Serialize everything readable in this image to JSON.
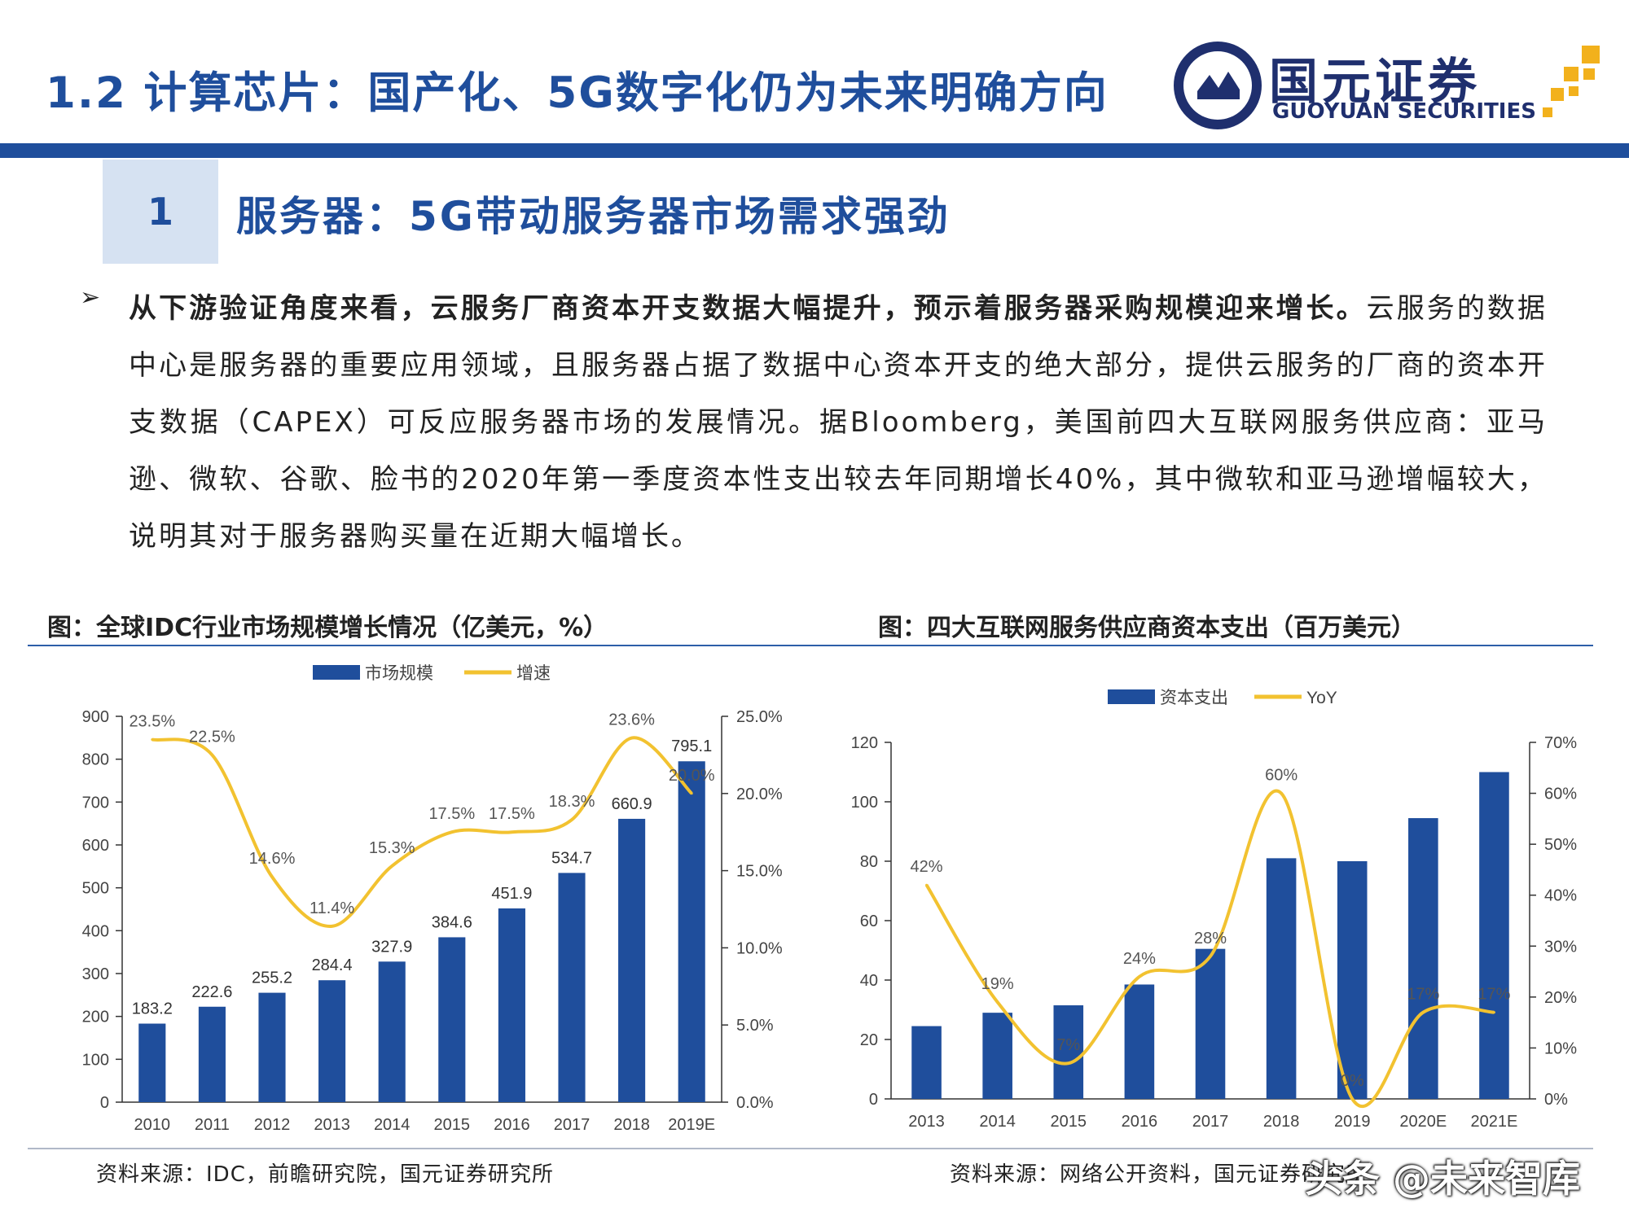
{
  "header": {
    "title": "1.2 计算芯片：国产化、5G数字化仍为未来明确方向",
    "logo_cn": "国元证券",
    "logo_en": "GUOYUAN SECURITIES",
    "colors": {
      "brand_blue": "#1f4e9c",
      "logo_navy": "#1f2f6e",
      "logo_gold": "#f2b11c"
    }
  },
  "section": {
    "number": "1",
    "title": "服务器：5G带动服务器市场需求强劲"
  },
  "body": {
    "bullet": "➢",
    "lead": "从下游验证角度来看，云服务厂商资本开支数据大幅提升，预示着服务器采购规模迎来增长。",
    "rest": "云服务的数据中心是服务器的重要应用领域，且服务器占据了数据中心资本开支的绝大部分，提供云服务的厂商的资本开支数据（CAPEX）可反应服务器市场的发展情况。据Bloomberg，美国前四大互联网服务供应商：亚马逊、微软、谷歌、脸书的2020年第一季度资本性支出较去年同期增长40%，其中微软和亚马逊增幅较大，说明其对于服务器购买量在近期大幅增长。"
  },
  "chart_data": [
    {
      "type": "bar+line",
      "title": "图：全球IDC行业市场规模增长情况（亿美元，%）",
      "categories": [
        "2010",
        "2011",
        "2012",
        "2013",
        "2014",
        "2015",
        "2016",
        "2017",
        "2018",
        "2019E"
      ],
      "series": [
        {
          "name": "市场规模",
          "kind": "bar",
          "axis": "left",
          "values": [
            183.2,
            222.6,
            255.2,
            284.4,
            327.9,
            384.6,
            451.9,
            534.7,
            660.9,
            795.1
          ],
          "labels": [
            "183.2",
            "222.6",
            "255.2",
            "284.4",
            "327.9",
            "384.6",
            "451.9",
            "534.7",
            "660.9",
            "795.1"
          ],
          "color": "#1f4e9c"
        },
        {
          "name": "增速",
          "kind": "line",
          "axis": "right",
          "values": [
            23.5,
            22.5,
            14.6,
            11.4,
            15.3,
            17.5,
            17.5,
            18.3,
            23.6,
            20.0
          ],
          "labels": [
            "23.5%",
            "22.5%",
            "14.6%",
            "11.4%",
            "15.3%",
            "17.5%",
            "17.5%",
            "18.3%",
            "23.6%",
            "20.0%"
          ],
          "color": "#f2c230"
        }
      ],
      "y_left": {
        "min": 0,
        "max": 900,
        "ticks": [
          "0",
          "100",
          "200",
          "300",
          "400",
          "500",
          "600",
          "700",
          "800",
          "900"
        ]
      },
      "y_right": {
        "min": 0,
        "max": 25,
        "ticks": [
          "0.0%",
          "5.0%",
          "10.0%",
          "15.0%",
          "20.0%",
          "25.0%"
        ]
      },
      "legend": "top-center",
      "grid": false,
      "source": "资料来源：IDC，前瞻研究院，国元证券研究所"
    },
    {
      "type": "bar+line",
      "title": "图：四大互联网服务供应商资本支出（百万美元）",
      "categories": [
        "2013",
        "2014",
        "2015",
        "2016",
        "2017",
        "2018",
        "2019",
        "2020E",
        "2021E"
      ],
      "series": [
        {
          "name": "资本支出",
          "kind": "bar",
          "axis": "left",
          "values": [
            24.5,
            29,
            31.5,
            38.5,
            50.5,
            81,
            80,
            94.5,
            110
          ],
          "color": "#1f4e9c"
        },
        {
          "name": "YoY",
          "kind": "line",
          "axis": "right",
          "values": [
            42,
            19,
            7,
            24,
            28,
            60,
            0,
            17,
            17
          ],
          "labels": [
            "42%",
            "19%",
            "7%",
            "24%",
            "28%",
            "60%",
            "0%",
            "17%",
            "17%"
          ],
          "color": "#f2c230"
        }
      ],
      "y_left": {
        "min": 0,
        "max": 120,
        "ticks": [
          "0",
          "20",
          "40",
          "60",
          "80",
          "100",
          "120"
        ]
      },
      "y_right": {
        "min": 0,
        "max": 70,
        "ticks": [
          "0%",
          "10%",
          "20%",
          "30%",
          "40%",
          "50%",
          "60%",
          "70%"
        ]
      },
      "legend": "top-center",
      "grid": false,
      "source": "资料来源：网络公开资料，国元证券研究所"
    }
  ],
  "watermark": "头条 @未来智库"
}
